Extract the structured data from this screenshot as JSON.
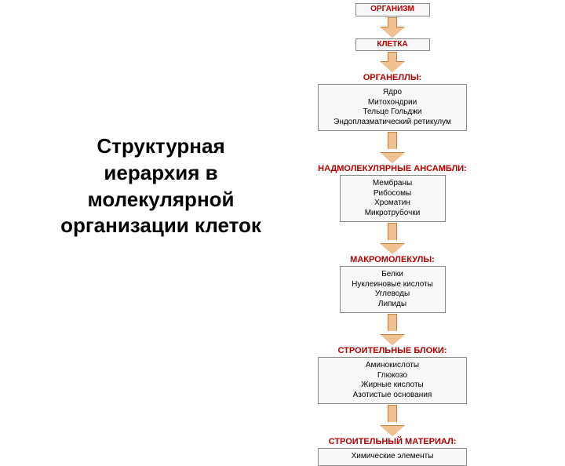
{
  "title": "Структурная иерархия в молекулярной организации клеток",
  "colors": {
    "header": "#b00000",
    "arrow_fill": "#f0c090",
    "arrow_border": "#c08040",
    "box_bg": "#f8f8f8",
    "box_border": "#888888",
    "text": "#000000"
  },
  "levels": [
    {
      "header": "ОРГАНИЗМ",
      "items": [],
      "box_class": "small headerbox"
    },
    {
      "header": "КЛЕТКА",
      "items": [],
      "box_class": "small headerbox"
    },
    {
      "header": "ОРГАНЕЛЛЫ:",
      "items": [
        "Ядро",
        "Митохондрии",
        "Тельце Гольджи",
        "Эндоплазматический ретикулум"
      ],
      "box_class": "",
      "arrow": "tall"
    },
    {
      "header": "НАДМОЛЕКУЛЯРНЫЕ АНСАМБЛИ:",
      "items": [
        "Мембраны",
        "Рибосомы",
        "Хроматин",
        "Микротрубочки"
      ],
      "box_class": "narrow",
      "arrow": "tall"
    },
    {
      "header": "МАКРОМОЛЕКУЛЫ:",
      "items": [
        "Белки",
        "Нуклеиновые кислоты",
        "Углеводы",
        "Липиды"
      ],
      "box_class": "narrow",
      "arrow": "tall"
    },
    {
      "header": "СТРОИТЕЛЬНЫЕ БЛОКИ:",
      "items": [
        "Аминокислоты",
        "Глюкозо",
        "Жирные кислоты",
        "Азотистые основания"
      ],
      "box_class": "",
      "arrow": "tall"
    },
    {
      "header": "СТРОИТЕЛЬНЫЙ МАТЕРИАЛ:",
      "items": [
        "Химические элементы"
      ],
      "box_class": ""
    }
  ]
}
